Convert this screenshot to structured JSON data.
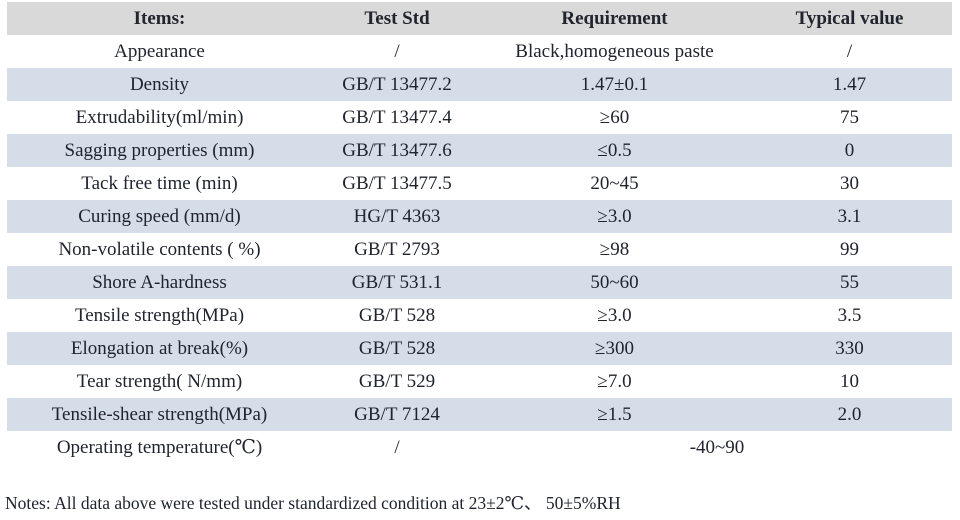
{
  "table": {
    "headers": {
      "items": "Items:",
      "test_std": "Test Std",
      "requirement": "Requirement",
      "typical_value": "Typical value"
    },
    "rows": [
      {
        "item": "Appearance",
        "std": "/",
        "req": "Black,homogeneous paste",
        "val": "/"
      },
      {
        "item": "Density",
        "std": "GB/T 13477.2",
        "req": "1.47±0.1",
        "val": "1.47"
      },
      {
        "item": "Extrudability(ml/min)",
        "std": "GB/T 13477.4",
        "req": "≥60",
        "val": "75"
      },
      {
        "item": "Sagging properties (mm)",
        "std": "GB/T 13477.6",
        "req": "≤0.5",
        "val": "0"
      },
      {
        "item": "Tack free time (min)",
        "std": "GB/T 13477.5",
        "req": "20~45",
        "val": "30"
      },
      {
        "item": "Curing speed (mm/d)",
        "std": "HG/T 4363",
        "req": "≥3.0",
        "val": "3.1"
      },
      {
        "item": "Non-volatile contents ( %)",
        "std": "GB/T 2793",
        "req": "≥98",
        "val": "99"
      },
      {
        "item": "Shore A-hardness",
        "std": "GB/T 531.1",
        "req": "50~60",
        "val": "55"
      },
      {
        "item": "Tensile strength(MPa)",
        "std": "GB/T 528",
        "req": "≥3.0",
        "val": "3.5"
      },
      {
        "item": "Elongation at break(%)",
        "std": "GB/T 528",
        "req": "≥300",
        "val": "330"
      },
      {
        "item": "Tear strength( N/mm)",
        "std": "GB/T 529",
        "req": "≥7.0",
        "val": "10"
      },
      {
        "item": "Tensile-shear strength(MPa)",
        "std": "GB/T 7124",
        "req": "≥1.5",
        "val": "2.0"
      },
      {
        "item": "Operating temperature(℃)",
        "std": "/",
        "req": "-40~90"
      }
    ]
  },
  "notes": "Notes: All data above were tested under standardized condition at 23±2℃、 50±5%RH",
  "colors": {
    "header_bg": "#d9d9d9",
    "alt_row_bg": "#d5dde8",
    "text": "#20242e",
    "page_bg": "#ffffff"
  }
}
